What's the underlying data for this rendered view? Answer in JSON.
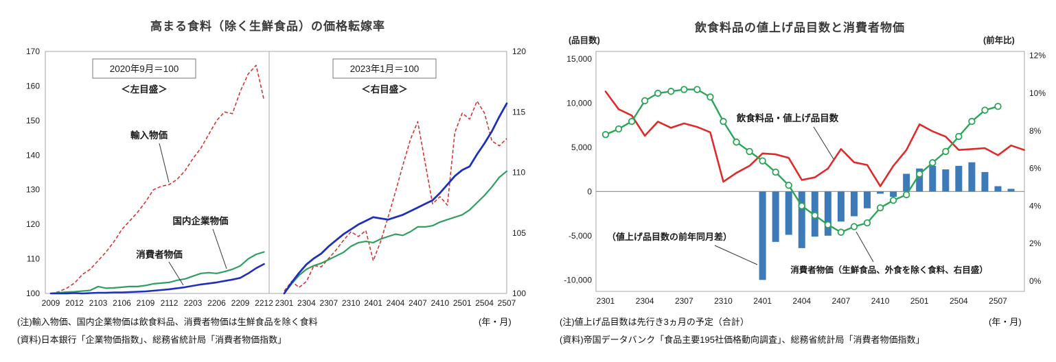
{
  "left_chart": {
    "title": "高まる食料（除く生鮮食品）の価格転嫁率",
    "panels": [
      {
        "box_label": "2020年9月＝100",
        "scale_label": "＜左目盛＞"
      },
      {
        "box_label": "2023年1月＝100",
        "scale_label": "＜右目盛＞"
      }
    ],
    "series_labels": {
      "import": "輸入物価",
      "corporate": "国内企業物価",
      "consumer": "消費者物価"
    },
    "note": "(注)輸入物価、国内企業物価は飲食料品、消費者物価は生鮮食品を除く食料",
    "axis_unit": "(年・月)",
    "source": "(資料)日本銀行「企業物価指数」、総務省統計局「消費者物価指数」"
  },
  "right_chart": {
    "title": "飲食料品の値上げ品目数と消費者物価",
    "left_axis_unit": "(品目数)",
    "right_axis_unit": "(前年比)",
    "annotations": {
      "items": "飲食料品・値上げ品目数",
      "diff": "（値上げ品目数の前年同月差）",
      "cpi": "消費者物価（生鮮食品、外食を除く食料、右目盛）"
    },
    "note": "(注)値上げ品目数は先行き3ヵ月の予定（合計）",
    "axis_unit": "(年・月)",
    "source": "(資料)帝国データバンク「食品主要195社価格動向調査」、総務省統計局「消費者物価指数」"
  },
  "colors": {
    "import_red": "#d63333",
    "items_red": "#e02a2a",
    "corporate_green": "#2f9e60",
    "cpi_green": "#2aa457",
    "consumer_blue": "#1e2fbb",
    "bar_blue": "#3d7bb8",
    "frame_gray": "#a6a6a6",
    "zero_gray": "#8c8c8c",
    "text_dark": "#1a1a1a"
  },
  "chart_data": [
    {
      "type": "line",
      "panel": "2020年9月＝100（左目盛）",
      "x": [
        "2009",
        "2010",
        "2011",
        "2012",
        "2101",
        "2102",
        "2103",
        "2104",
        "2105",
        "2106",
        "2107",
        "2108",
        "2109",
        "2110",
        "2111",
        "2112",
        "2201",
        "2202",
        "2203",
        "2204",
        "2205",
        "2206",
        "2207",
        "2208",
        "2209",
        "2210",
        "2211",
        "2212"
      ],
      "x_ticks": [
        "2009",
        "2012",
        "2103",
        "2106",
        "2109",
        "2112",
        "2203",
        "2206",
        "2209",
        "2212"
      ],
      "ylim": [
        100,
        170
      ],
      "y_ticks": [
        100,
        110,
        120,
        130,
        140,
        150,
        160,
        170
      ],
      "grid": false,
      "series": [
        {
          "name": "輸入物価",
          "style": "dashed",
          "color": "import_red",
          "values": [
            100,
            100.5,
            101.5,
            103,
            105.5,
            107,
            109.5,
            112,
            115,
            118.5,
            121,
            123.5,
            126.5,
            130,
            131,
            131.5,
            133,
            135.5,
            139,
            142,
            146,
            150,
            152.5,
            152,
            158.5,
            163.5,
            166,
            156
          ]
        },
        {
          "name": "国内企業物価",
          "style": "solid",
          "color": "corporate_green",
          "values": [
            100,
            100.2,
            100.4,
            100.5,
            100.7,
            100.9,
            102,
            101.5,
            101.6,
            101.8,
            102,
            102,
            102.3,
            102.8,
            103,
            103.2,
            103.8,
            104.2,
            105,
            105.8,
            106,
            105.8,
            106.3,
            107,
            108,
            110,
            111.3,
            112
          ]
        },
        {
          "name": "消費者物価",
          "style": "solid",
          "color": "consumer_blue",
          "values": [
            100,
            100,
            100,
            100.1,
            100,
            100.1,
            100.2,
            100.2,
            100.3,
            100.3,
            100.4,
            100.5,
            100.6,
            100.8,
            101,
            101.2,
            101.5,
            101.8,
            102.2,
            102.6,
            102.9,
            103.2,
            103.6,
            104,
            104.5,
            105.8,
            107.3,
            108.5
          ]
        }
      ]
    },
    {
      "type": "line",
      "panel": "2023年1月＝100（右目盛）",
      "x": [
        "2301",
        "2302",
        "2303",
        "2304",
        "2305",
        "2306",
        "2307",
        "2308",
        "2309",
        "2310",
        "2311",
        "2312",
        "2401",
        "2402",
        "2403",
        "2404",
        "2405",
        "2406",
        "2407",
        "2408",
        "2409",
        "2410",
        "2411",
        "2412",
        "2501",
        "2502",
        "2503",
        "2504",
        "2505",
        "2506",
        "2507"
      ],
      "x_ticks": [
        "2301",
        "2304",
        "2307",
        "2310",
        "2401",
        "2404",
        "2407",
        "2410",
        "2501",
        "2504",
        "2507"
      ],
      "ylim": [
        100,
        120
      ],
      "y_ticks": [
        100,
        105,
        110,
        115,
        120
      ],
      "grid": false,
      "series": [
        {
          "name": "輸入物価",
          "style": "dashed",
          "color": "import_red",
          "values": [
            100.2,
            101,
            100.5,
            101,
            102.3,
            102.2,
            102.9,
            103.6,
            104.4,
            105.1,
            104.7,
            105.2,
            102.7,
            104.3,
            106.3,
            108.4,
            110.6,
            112.7,
            114.2,
            110.8,
            107.4,
            108,
            107.3,
            113.3,
            114.9,
            114.4,
            115.9,
            114.9,
            112.6,
            112.2,
            112.8
          ]
        },
        {
          "name": "国内企業物価",
          "style": "solid",
          "color": "corporate_green",
          "values": [
            100,
            100.8,
            101.5,
            102,
            102.3,
            102.5,
            102.8,
            103.1,
            103.4,
            103.9,
            104.2,
            104.3,
            104.2,
            104.5,
            104.7,
            104.9,
            104.8,
            105.1,
            105.5,
            105.5,
            105.6,
            105.9,
            106.1,
            106.3,
            106.5,
            106.9,
            107.5,
            108.1,
            108.8,
            109.6,
            110.1
          ]
        },
        {
          "name": "消費者物価",
          "style": "solid",
          "color": "consumer_blue",
          "values": [
            100,
            100.9,
            101.7,
            102.4,
            102.9,
            103.3,
            103.9,
            104.4,
            104.9,
            105.3,
            105.7,
            106,
            106.3,
            106.2,
            106.1,
            106.3,
            106.5,
            106.8,
            107.1,
            107.4,
            107.7,
            108.3,
            109,
            109.7,
            110.2,
            110.5,
            111.5,
            112.4,
            113.4,
            114.6,
            115.7
          ]
        }
      ]
    },
    {
      "type": "bar+line",
      "title": "飲食料品の値上げ品目数と消費者物価",
      "x": [
        "2301",
        "2302",
        "2303",
        "2304",
        "2305",
        "2306",
        "2307",
        "2308",
        "2309",
        "2310",
        "2311",
        "2312",
        "2401",
        "2402",
        "2403",
        "2404",
        "2405",
        "2406",
        "2407",
        "2408",
        "2409",
        "2410",
        "2411",
        "2412",
        "2501",
        "2502",
        "2503",
        "2504",
        "2505",
        "2506",
        "2507",
        "2508",
        "2509"
      ],
      "x_ticks": [
        "2301",
        "2304",
        "2307",
        "2310",
        "2401",
        "2404",
        "2407",
        "2410",
        "2501",
        "2504",
        "2507"
      ],
      "left_ylim": [
        -10000,
        15000
      ],
      "left_y_ticks": [
        "15,000",
        "10,000",
        "5,000",
        "0",
        "-5,000",
        "-10,000"
      ],
      "left_y_tick_values": [
        15000,
        10000,
        5000,
        0,
        -5000,
        -10000
      ],
      "right_ylim": [
        0,
        12
      ],
      "right_y_ticks": [
        "12%",
        "10%",
        "8%",
        "6%",
        "4%",
        "2%",
        "0%"
      ],
      "right_y_tick_values": [
        12,
        10,
        8,
        6,
        4,
        2,
        0
      ],
      "grid": false,
      "bars": {
        "name": "値上げ品目数の前年同月差",
        "axis": "left",
        "color": "bar_blue",
        "x_start": "2401",
        "values": [
          -10000,
          -5700,
          -4900,
          -6400,
          -5100,
          -5000,
          -3400,
          -2800,
          -1900,
          -250,
          -600,
          2000,
          2600,
          2900,
          2500,
          2900,
          3300,
          2200,
          600,
          300
        ]
      },
      "series": [
        {
          "name": "飲食料品・値上げ品目数",
          "axis": "left",
          "style": "solid",
          "color": "items_red",
          "marker": false,
          "values": [
            11300,
            9300,
            8600,
            6300,
            7900,
            7200,
            7700,
            7300,
            6700,
            1100,
            2100,
            2900,
            4300,
            4200,
            3800,
            1300,
            1600,
            2600,
            4800,
            3300,
            3000,
            600,
            2900,
            4700,
            7600,
            6800,
            6200,
            4700,
            4800,
            4900,
            4100,
            5200,
            4700
          ]
        },
        {
          "name": "消費者物価（生鮮食品、外食を除く食料、右目盛）",
          "axis": "right",
          "style": "solid",
          "color": "cpi_green",
          "marker": true,
          "values": [
            7.8,
            8.1,
            8.5,
            9.6,
            10,
            10.1,
            10.2,
            10.2,
            9.8,
            8.5,
            7.4,
            6.9,
            6.4,
            5.8,
            5.1,
            4,
            3.5,
            3,
            2.6,
            2.9,
            3.1,
            3.9,
            4.3,
            4.6,
            5.7,
            6.3,
            6.9,
            7.7,
            8.5,
            9.1,
            9.3,
            null,
            null
          ]
        }
      ]
    }
  ]
}
